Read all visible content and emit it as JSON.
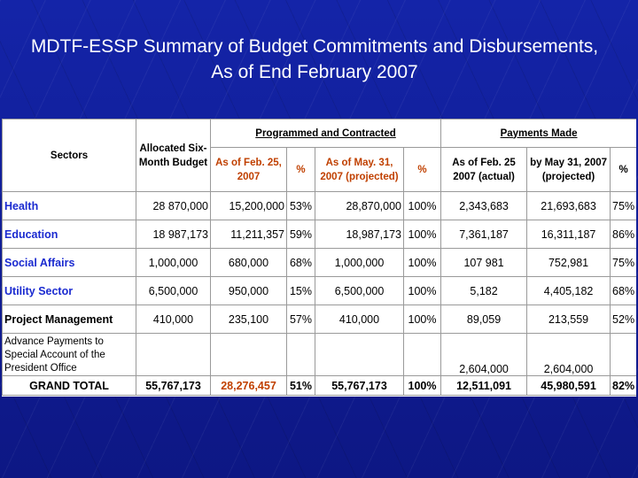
{
  "title": "MDTF-ESSP Summary of Budget Commitments and Disbursements, As of End February 2007",
  "headers": {
    "sectors": "Sectors",
    "allocated": "Allocated Six-Month Budget",
    "programmed_group": "Programmed and Contracted",
    "payments_group": "Payments Made",
    "as_of_feb": "As of Feb. 25, 2007",
    "pct1": "%",
    "as_of_may": "As of May. 31, 2007 (projected)",
    "pct2": "%",
    "pay_feb": "As of Feb. 25 2007 (actual)",
    "pay_may": "by May 31, 2007 (projected)",
    "pct3": "%"
  },
  "rows": [
    {
      "sector": "Health",
      "allocated": "28 870,000",
      "feb": "15,200,000",
      "pct1": "53%",
      "may": "28,870,000",
      "pct2": "100%",
      "pay_feb": "2,343,683",
      "pay_may": "21,693,683",
      "pct3": "75%"
    },
    {
      "sector": "Education",
      "allocated": "18 987,173",
      "feb": "11,211,357",
      "pct1": "59%",
      "may": "18,987,173",
      "pct2": "100%",
      "pay_feb": "7,361,187",
      "pay_may": "16,311,187",
      "pct3": "86%"
    },
    {
      "sector": "Social Affairs",
      "allocated": "1,000,000",
      "feb": "680,000",
      "pct1": "68%",
      "may": "1,000,000",
      "pct2": "100%",
      "pay_feb": "107 981",
      "pay_may": "752,981",
      "pct3": "75%"
    },
    {
      "sector": "Utility Sector",
      "allocated": "6,500,000",
      "feb": "950,000",
      "pct1": "15%",
      "may": "6,500,000",
      "pct2": "100%",
      "pay_feb": "5,182",
      "pay_may": "4,405,182",
      "pct3": "68%"
    },
    {
      "sector": "Project Management",
      "allocated": "410,000",
      "feb": "235,100",
      "pct1": "57%",
      "may": "410,000",
      "pct2": "100%",
      "pay_feb": "89,059",
      "pay_may": "213,559",
      "pct3": "52%"
    }
  ],
  "advance": {
    "label": "Advance Payments to Special Account of the President Office",
    "pay_feb": "2,604,000",
    "pay_may": "2,604,000"
  },
  "total": {
    "label": "GRAND TOTAL",
    "allocated": "55,767,173",
    "feb": "28,276,457",
    "pct1": "51%",
    "may": "55,767,173",
    "pct2": "100%",
    "pay_feb": "12,511,091",
    "pay_may": "45,980,591",
    "pct3": "82%"
  },
  "colors": {
    "background": "#0e1a8c",
    "sector_blue": "#1a2ad0",
    "orange": "#c04000"
  }
}
